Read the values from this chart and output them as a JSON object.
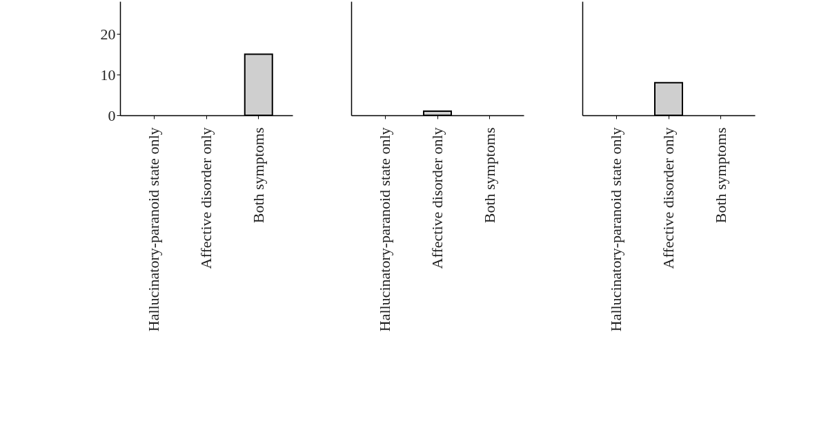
{
  "chart_data": [
    {
      "type": "bar",
      "categories": [
        "Hallucinatory-paranoid state only",
        "Affective disorder only",
        "Both symptoms"
      ],
      "values": [
        null,
        null,
        15
      ],
      "color": "#cfcfcf",
      "ylim": [
        0,
        28
      ],
      "yticks": [
        0,
        10,
        20
      ],
      "grid": false
    },
    {
      "type": "bar",
      "categories": [
        "Hallucinatory-paranoid state only",
        "Affective disorder only",
        "Both symptoms"
      ],
      "values": [
        null,
        1,
        0
      ],
      "color": "#cfcfcf",
      "ylim": [
        0,
        28
      ],
      "yticks": [
        0,
        10,
        20
      ],
      "grid": false,
      "tick_labels": "x"
    },
    {
      "type": "bar",
      "categories": [
        "Hallucinatory-paranoid state only",
        "Affective disorder only",
        "Both symptoms"
      ],
      "values": [
        null,
        8,
        0
      ],
      "color": "#cfcfcf",
      "ylim": [
        0,
        28
      ],
      "yticks": [
        0,
        10,
        20
      ],
      "grid": false,
      "tick_labels": "x"
    }
  ]
}
